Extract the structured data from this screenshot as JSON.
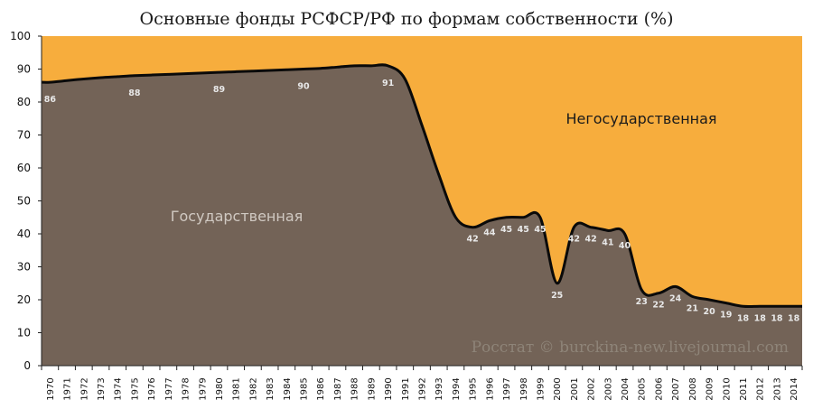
{
  "chart_data": {
    "type": "area",
    "title": "Основные фонды РСФСР/РФ по формам собственности (%)",
    "ylim": [
      0,
      100
    ],
    "yticks": [
      0,
      10,
      20,
      30,
      40,
      50,
      60,
      70,
      80,
      90,
      100
    ],
    "x": [
      "1970",
      "1971",
      "1972",
      "1973",
      "1974",
      "1975",
      "1976",
      "1977",
      "1978",
      "1979",
      "1980",
      "1981",
      "1982",
      "1983",
      "1984",
      "1985",
      "1986",
      "1987",
      "1988",
      "1989",
      "1990",
      "1991",
      "1992",
      "1993",
      "1994",
      "1995",
      "1996",
      "1997",
      "1998",
      "1999",
      "2000",
      "2001",
      "2002",
      "2003",
      "2004",
      "2005",
      "2006",
      "2007",
      "2008",
      "2009",
      "2010",
      "2011",
      "2012",
      "2013",
      "2014"
    ],
    "series": [
      {
        "name": "Государственная",
        "color": "#736357",
        "values": [
          86,
          86.5,
          87,
          87.4,
          87.7,
          88,
          88.2,
          88.4,
          88.6,
          88.8,
          89,
          89.2,
          89.4,
          89.6,
          89.8,
          90,
          90.2,
          90.6,
          91,
          91,
          91,
          87,
          73,
          58,
          45,
          42,
          44,
          45,
          45,
          45,
          25,
          42,
          42,
          41,
          40,
          23,
          22,
          24,
          21,
          20,
          19,
          18,
          18,
          18,
          18
        ]
      },
      {
        "name": "Негосударственная",
        "color": "#f7ad3d"
      }
    ],
    "data_labels": [
      {
        "x": "1970",
        "value": "86"
      },
      {
        "x": "1975",
        "value": "88"
      },
      {
        "x": "1980",
        "value": "89"
      },
      {
        "x": "1985",
        "value": "90"
      },
      {
        "x": "1990",
        "value": "91"
      },
      {
        "x": "1995",
        "value": "42"
      },
      {
        "x": "1996",
        "value": "44"
      },
      {
        "x": "1997",
        "value": "45"
      },
      {
        "x": "1998",
        "value": "45"
      },
      {
        "x": "1999",
        "value": "45"
      },
      {
        "x": "2000",
        "value": "25"
      },
      {
        "x": "2001",
        "value": "42"
      },
      {
        "x": "2002",
        "value": "42"
      },
      {
        "x": "2003",
        "value": "41"
      },
      {
        "x": "2004",
        "value": "40"
      },
      {
        "x": "2005",
        "value": "23"
      },
      {
        "x": "2006",
        "value": "22"
      },
      {
        "x": "2007",
        "value": "24"
      },
      {
        "x": "2008",
        "value": "21"
      },
      {
        "x": "2009",
        "value": "20"
      },
      {
        "x": "2010",
        "value": "19"
      },
      {
        "x": "2011",
        "value": "18"
      },
      {
        "x": "2012",
        "value": "18"
      },
      {
        "x": "2013",
        "value": "18"
      },
      {
        "x": "2014",
        "value": "18"
      }
    ],
    "watermark": "Росстат © burckina-new.livejournal.com",
    "grid": false
  }
}
